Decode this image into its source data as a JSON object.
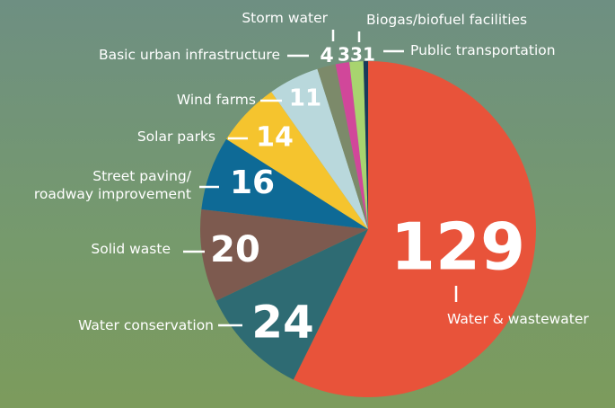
{
  "chart_data": {
    "type": "pie",
    "categories": [
      "Water & wastewater",
      "Water conservation",
      "Solid waste",
      "Street paving/\nroadway improvement",
      "Solar parks",
      "Wind farms",
      "Basic urban infrastructure",
      "Storm water",
      "Biogas/biofuel facilities",
      "Public transportation"
    ],
    "values": [
      129,
      24,
      20,
      16,
      14,
      11,
      4,
      3,
      3,
      1
    ],
    "colors": [
      "#e8533a",
      "#2e6b73",
      "#7d5a4f",
      "#0e6a96",
      "#f5c42e",
      "#b9d8dc",
      "#7c8a6a",
      "#d1479a",
      "#a8d46f",
      "#183a5a"
    ]
  }
}
